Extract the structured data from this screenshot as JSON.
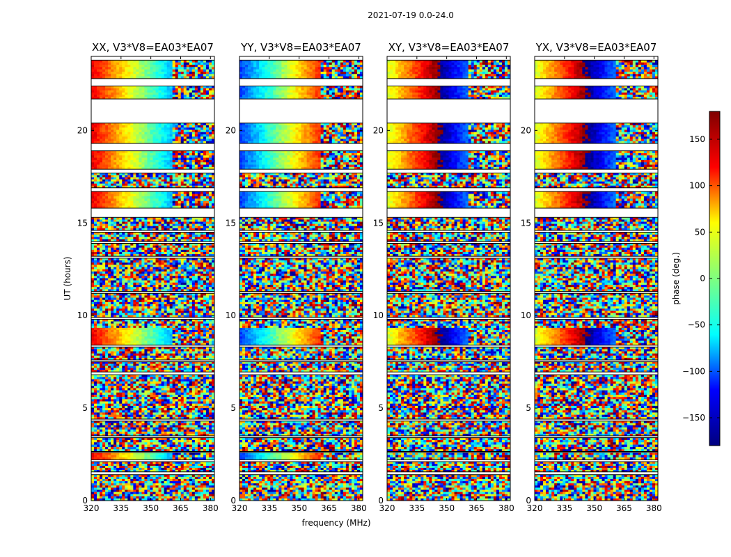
{
  "chart_data": {
    "type": "heatmap",
    "suptitle": "2021-07-19 0.0-24.0",
    "xlabel": "frequency (MHz)",
    "ylabel": "UT (hours)",
    "xlim": [
      320,
      382
    ],
    "ylim": [
      0,
      24
    ],
    "xticks": [
      "320",
      "335",
      "350",
      "365",
      "380"
    ],
    "yticks": [
      "0",
      "5",
      "10",
      "15",
      "20"
    ],
    "panels": [
      {
        "title": "XX, V3*V8=EA03*EA07",
        "pol": "XX"
      },
      {
        "title": "YY, V3*V8=EA03*EA07",
        "pol": "YY"
      },
      {
        "title": "XY, V3*V8=EA03*EA07",
        "pol": "XY"
      },
      {
        "title": "YX, V3*V8=EA03*EA07",
        "pol": "YX"
      }
    ],
    "colorbar": {
      "label": "phase (deg.)",
      "range": [
        -180,
        180
      ],
      "ticks": [
        "150",
        "100",
        "50",
        "0",
        "−50",
        "−100",
        "−150"
      ],
      "colormap": "jet",
      "colors": [
        "#00007f",
        "#0000ff",
        "#00ffff",
        "#7fff7f",
        "#ffff00",
        "#ff0000",
        "#7f0000"
      ]
    },
    "time_blocks_ut": [
      [
        0.0,
        1.4
      ],
      [
        1.55,
        2.1
      ],
      [
        2.2,
        2.6
      ],
      [
        2.65,
        3.4
      ],
      [
        3.5,
        4.3
      ],
      [
        4.4,
        6.8
      ],
      [
        6.95,
        7.5
      ],
      [
        7.6,
        8.3
      ],
      [
        8.4,
        9.8
      ],
      [
        9.9,
        11.2
      ],
      [
        11.3,
        13.1
      ],
      [
        13.2,
        13.9
      ],
      [
        14.0,
        14.5
      ],
      [
        14.6,
        15.3
      ],
      [
        15.8,
        16.7
      ],
      [
        16.9,
        17.7
      ],
      [
        17.9,
        18.9
      ],
      [
        19.3,
        20.4
      ],
      [
        21.7,
        22.4
      ],
      [
        22.8,
        23.8
      ]
    ],
    "coherent_blocks_ut": [
      {
        "range": [
          2.2,
          2.6
        ],
        "panels": [
          "XX",
          "YY"
        ]
      },
      {
        "range": [
          8.4,
          9.4
        ],
        "panels": [
          "XX",
          "YY",
          "XY",
          "YX"
        ]
      },
      {
        "range": [
          15.8,
          16.7
        ],
        "panels": [
          "XX",
          "YY",
          "XY",
          "YX"
        ]
      },
      {
        "range": [
          17.9,
          18.9
        ],
        "panels": [
          "XX",
          "YY",
          "XY",
          "YX"
        ]
      },
      {
        "range": [
          19.3,
          20.4
        ],
        "panels": [
          "XX",
          "YY",
          "XY",
          "YX"
        ]
      },
      {
        "range": [
          21.7,
          22.4
        ],
        "panels": [
          "XX",
          "YY",
          "XY",
          "YX"
        ]
      },
      {
        "range": [
          22.8,
          23.8
        ],
        "panels": [
          "XX",
          "YY",
          "XY",
          "YX"
        ]
      }
    ],
    "grid": false,
    "legend": "none"
  }
}
